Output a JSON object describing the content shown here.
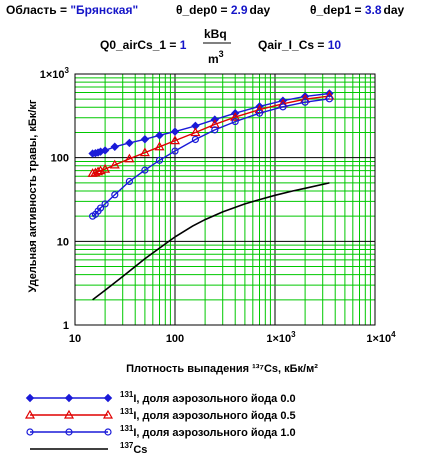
{
  "header": {
    "region_label": "Область = ",
    "region_value": "\"Брянская\"",
    "dep0_label": "θ_dep0 = ",
    "dep0_value": "2.9",
    "dep0_unit": "day",
    "dep1_label": "θ_dep1 = ",
    "dep1_value": "3.8",
    "dep1_unit": "day",
    "q0_label": "Q0_airCs_1 = ",
    "q0_value": "1",
    "q0_unit_num": "kBq",
    "q0_unit_den": "m",
    "q0_unit_exp": "3",
    "qair_label": "Qair_I_Cs = ",
    "qair_value": "10"
  },
  "chart_data": {
    "type": "line",
    "xscale": "log",
    "yscale": "log",
    "xlim": [
      10,
      10000
    ],
    "ylim": [
      1,
      1000
    ],
    "grid": true,
    "xlabel": "Плотность выпадения ¹³⁷Cs, кБк/м²",
    "ylabel": "Удельная активность травы, кБк/кг",
    "x_ticks": [
      {
        "v": 10,
        "base": "10",
        "exp": ""
      },
      {
        "v": 100,
        "base": "100",
        "exp": ""
      },
      {
        "v": 1000,
        "base": "1×10",
        "exp": "3"
      },
      {
        "v": 10000,
        "base": "1×10",
        "exp": "4"
      }
    ],
    "y_ticks": [
      {
        "v": 1,
        "base": "1",
        "exp": ""
      },
      {
        "v": 10,
        "base": "10",
        "exp": ""
      },
      {
        "v": 100,
        "base": "100",
        "exp": ""
      },
      {
        "v": 1000,
        "base": "1×10",
        "exp": "3"
      }
    ],
    "legend_position": "bottom",
    "series": [
      {
        "name": "¹³¹I, доля аэрозольного йода  0.0",
        "legend_sup": "131",
        "legend_text": "I, доля аэрозольного йода  0.0",
        "color": "#1a1ad8",
        "marker": "diamond",
        "x": [
          15,
          16,
          17,
          18,
          20,
          25,
          35,
          50,
          70,
          100,
          160,
          250,
          400,
          700,
          1200,
          2000,
          3500
        ],
        "y": [
          112,
          113,
          115,
          118,
          122,
          135,
          150,
          166,
          185,
          205,
          240,
          285,
          340,
          410,
          480,
          540,
          585
        ]
      },
      {
        "name": "¹³¹I, доля аэрозольного йода  0.5",
        "legend_sup": "131",
        "legend_text": "I, доля аэрозольного йода  0.5",
        "color": "#e00000",
        "marker": "triangle",
        "x": [
          15,
          16,
          17,
          18,
          20,
          25,
          35,
          50,
          70,
          100,
          160,
          250,
          400,
          700,
          1200,
          2000,
          3500
        ],
        "y": [
          65,
          66,
          68,
          70,
          73,
          82,
          97,
          115,
          135,
          160,
          200,
          250,
          305,
          375,
          440,
          500,
          545
        ]
      },
      {
        "name": "¹³¹I, доля аэрозольного йода  1.0",
        "legend_sup": "131",
        "legend_text": "I, доля аэрозольного йода  1.0",
        "color": "#1a1ad8",
        "marker": "circle",
        "x": [
          15,
          16,
          17,
          18,
          20,
          25,
          35,
          50,
          70,
          100,
          160,
          250,
          400,
          700,
          1200,
          2000,
          3500
        ],
        "y": [
          20,
          21,
          23,
          25,
          28,
          36,
          52,
          71,
          93,
          120,
          165,
          215,
          270,
          340,
          405,
          460,
          505
        ]
      },
      {
        "name": "¹³⁷Cs",
        "legend_sup": "137",
        "legend_text": "Cs",
        "color": "#000000",
        "marker": "none",
        "x": [
          15,
          20,
          30,
          50,
          70,
          100,
          150,
          200,
          300,
          500,
          700,
          1000,
          1500,
          2000,
          3500
        ],
        "y": [
          2,
          2.6,
          3.8,
          6.2,
          8.3,
          11.3,
          15.2,
          18.2,
          22.5,
          28,
          31.5,
          35.5,
          40,
          43,
          50
        ]
      }
    ]
  }
}
